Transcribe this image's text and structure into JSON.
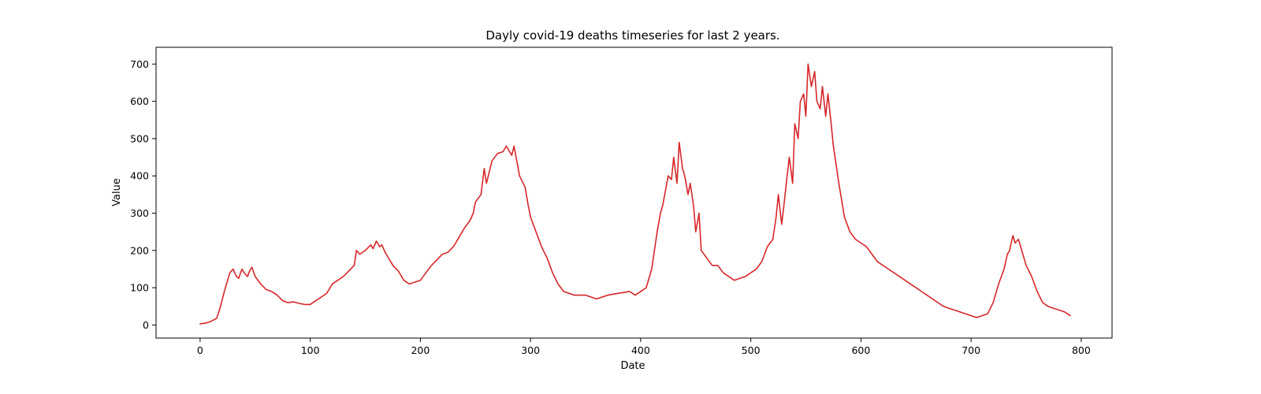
{
  "chart_data": {
    "type": "line",
    "title": "Dayly covid-19 deaths timeseries for last 2 years.",
    "xlabel": "Date",
    "ylabel": "Value",
    "xlim": [
      -40,
      828
    ],
    "ylim": [
      -35,
      745
    ],
    "xticks": [
      0,
      100,
      200,
      300,
      400,
      500,
      600,
      700,
      800
    ],
    "yticks": [
      0,
      100,
      200,
      300,
      400,
      500,
      600,
      700
    ],
    "grid": false,
    "legend": "none",
    "line_color": "#d62728",
    "x": [
      0,
      5,
      10,
      15,
      18,
      22,
      27,
      30,
      33,
      35,
      38,
      40,
      43,
      45,
      47,
      50,
      55,
      60,
      65,
      70,
      75,
      80,
      85,
      90,
      95,
      100,
      105,
      110,
      115,
      120,
      125,
      130,
      135,
      140,
      142,
      145,
      150,
      155,
      157,
      160,
      163,
      165,
      168,
      170,
      175,
      180,
      185,
      190,
      195,
      200,
      205,
      210,
      215,
      220,
      225,
      230,
      235,
      240,
      245,
      248,
      250,
      255,
      258,
      260,
      265,
      270,
      275,
      278,
      280,
      283,
      285,
      290,
      295,
      298,
      300,
      305,
      310,
      315,
      320,
      325,
      330,
      340,
      350,
      360,
      370,
      380,
      390,
      395,
      400,
      405,
      410,
      415,
      418,
      420,
      425,
      428,
      430,
      433,
      435,
      438,
      440,
      443,
      445,
      448,
      450,
      453,
      455,
      460,
      465,
      470,
      475,
      480,
      485,
      490,
      495,
      500,
      505,
      510,
      515,
      520,
      523,
      525,
      528,
      530,
      533,
      535,
      538,
      540,
      543,
      545,
      548,
      550,
      552,
      555,
      558,
      560,
      563,
      565,
      568,
      570,
      573,
      575,
      578,
      580,
      585,
      590,
      595,
      600,
      605,
      610,
      615,
      620,
      625,
      630,
      635,
      640,
      645,
      650,
      655,
      660,
      665,
      670,
      675,
      680,
      685,
      690,
      695,
      700,
      705,
      710,
      715,
      720,
      725,
      730,
      733,
      735,
      738,
      740,
      743,
      745,
      748,
      750,
      755,
      760,
      765,
      770,
      775,
      780,
      785,
      790
    ],
    "y": [
      3,
      5,
      10,
      18,
      45,
      90,
      140,
      150,
      130,
      125,
      150,
      140,
      130,
      145,
      155,
      130,
      110,
      95,
      90,
      80,
      65,
      60,
      62,
      58,
      55,
      55,
      65,
      75,
      85,
      110,
      120,
      130,
      145,
      160,
      200,
      190,
      200,
      215,
      205,
      225,
      210,
      215,
      195,
      185,
      160,
      145,
      120,
      110,
      115,
      120,
      140,
      160,
      175,
      190,
      195,
      210,
      235,
      260,
      280,
      300,
      330,
      350,
      420,
      380,
      440,
      460,
      465,
      480,
      470,
      455,
      480,
      400,
      370,
      320,
      290,
      250,
      210,
      180,
      140,
      110,
      90,
      80,
      80,
      70,
      80,
      85,
      90,
      80,
      90,
      100,
      150,
      250,
      300,
      320,
      400,
      390,
      450,
      380,
      490,
      420,
      400,
      350,
      380,
      320,
      250,
      300,
      200,
      180,
      160,
      160,
      140,
      130,
      120,
      125,
      130,
      140,
      150,
      170,
      210,
      230,
      290,
      350,
      270,
      320,
      400,
      450,
      380,
      540,
      500,
      600,
      620,
      560,
      700,
      640,
      680,
      600,
      580,
      640,
      560,
      620,
      540,
      480,
      420,
      380,
      290,
      250,
      230,
      220,
      210,
      190,
      170,
      160,
      150,
      140,
      130,
      120,
      110,
      100,
      90,
      80,
      70,
      60,
      50,
      45,
      40,
      35,
      30,
      25,
      20,
      25,
      30,
      60,
      110,
      150,
      190,
      200,
      240,
      220,
      230,
      210,
      180,
      160,
      130,
      90,
      60,
      50,
      45,
      40,
      35,
      25
    ]
  }
}
